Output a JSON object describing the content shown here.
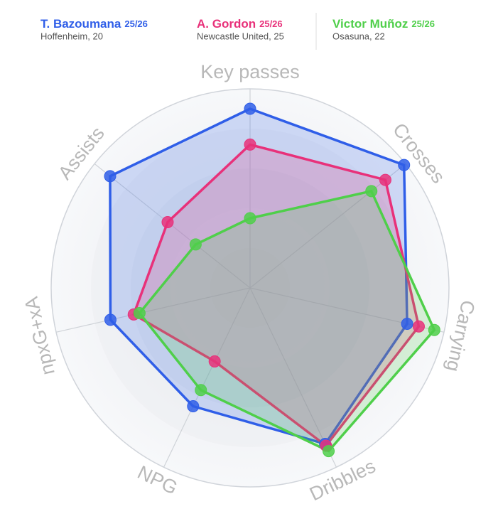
{
  "chart_data": {
    "type": "radar",
    "categories": [
      "Key passes",
      "Crosses",
      "Carrying",
      "Dribbles",
      "NPG",
      "npxG+xA",
      "Assists"
    ],
    "rlim": [
      0,
      100
    ],
    "series": [
      {
        "name": "T. Bazoumana",
        "season": "25/26",
        "info": "Hoffenheim, 20",
        "color": "#2f5ee8",
        "values": [
          90,
          99,
          81,
          87,
          66,
          72,
          90
        ]
      },
      {
        "name": "A. Gordon",
        "season": "25/26",
        "info": "Newcastle United, 25",
        "color": "#e8317a",
        "values": [
          72,
          87,
          87,
          88,
          41,
          60,
          53
        ]
      },
      {
        "name": "Victor Muñoz",
        "season": "25/26",
        "info": "Osasuna, 22",
        "color": "#4fcf4a",
        "values": [
          35,
          78,
          95,
          91,
          57,
          57,
          35
        ]
      }
    ]
  }
}
